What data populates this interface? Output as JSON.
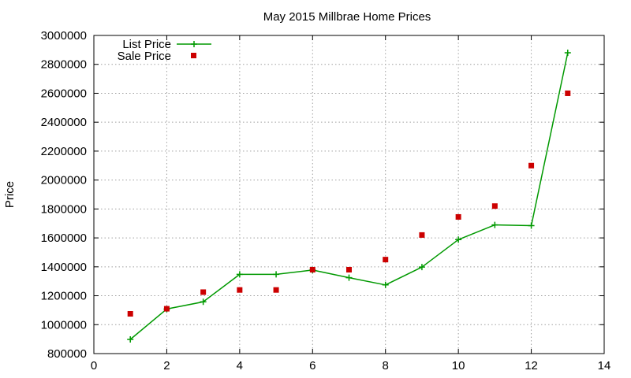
{
  "chart_data": {
    "type": "line",
    "title": "May 2015 Millbrae Home Prices",
    "xlabel": "",
    "ylabel": "Price",
    "xlim": [
      0,
      14
    ],
    "ylim": [
      800000,
      3000000
    ],
    "xticks": [
      "0",
      "2",
      "4",
      "6",
      "8",
      "10",
      "12",
      "14"
    ],
    "yticks": [
      "800000",
      "1000000",
      "1200000",
      "1400000",
      "1600000",
      "1800000",
      "2000000",
      "2200000",
      "2400000",
      "2600000",
      "2800000",
      "3000000"
    ],
    "grid": true,
    "legend_position": "top-left",
    "series": [
      {
        "name": "List Price",
        "style": "line-with-plus-markers",
        "color": "#009900",
        "x": [
          1,
          2,
          3,
          4,
          5,
          6,
          7,
          8,
          9,
          10,
          11,
          12,
          13
        ],
        "y": [
          898000,
          1108000,
          1158000,
          1348000,
          1348000,
          1378000,
          1325000,
          1275000,
          1398000,
          1588000,
          1690000,
          1685000,
          2880000
        ]
      },
      {
        "name": "Sale Price",
        "style": "square-markers",
        "color": "#cc0000",
        "x": [
          1,
          2,
          3,
          4,
          5,
          6,
          7,
          8,
          9,
          10,
          11,
          12,
          13
        ],
        "y": [
          1075000,
          1110000,
          1225000,
          1240000,
          1240000,
          1380000,
          1380000,
          1450000,
          1620000,
          1745000,
          1820000,
          2100000,
          2600000
        ]
      }
    ]
  }
}
